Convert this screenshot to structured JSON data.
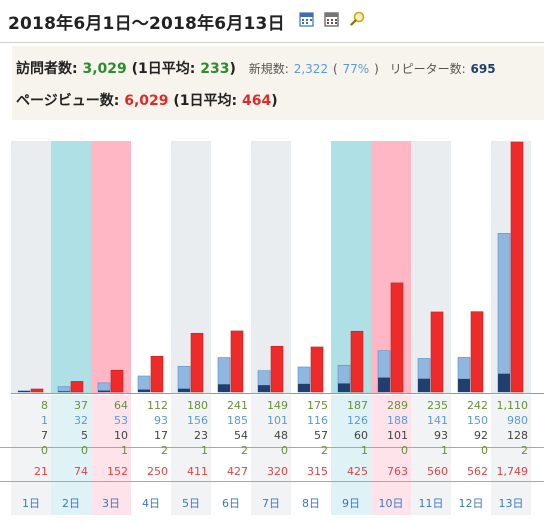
{
  "header": {
    "title": "2018年6月1日～2018年6月13日",
    "icons": [
      "calendar-icon",
      "calendar-grid-icon",
      "search-magnifier-icon"
    ]
  },
  "summary": {
    "visitors_label": "訪問者数:",
    "visitors_value": "3,029",
    "visitors_avg_open": "(1日平均:",
    "visitors_avg_value": "233",
    "visitors_avg_close": ")",
    "new_label": "新規数:",
    "new_value": "2,322",
    "new_pct_open": "(",
    "new_pct": "77%",
    "new_pct_close": ")",
    "repeat_label": "リピーター数:",
    "repeat_value": "695",
    "pv_label": "ページビュー数:",
    "pv_value": "6,029",
    "pv_avg_open": "(1日平均:",
    "pv_avg_value": "464",
    "pv_avg_close": ")"
  },
  "colors": {
    "visitors": "#6a8f3a",
    "new": "#8fb7e0",
    "repeat": "#1f3f6f",
    "pageviews": "#ee2b2b",
    "weekend_blue": "#aee0e6",
    "weekend_pink": "#ffb6c5",
    "gray_band": "#e9edf0"
  },
  "chart_data": {
    "type": "bar",
    "categories": [
      "1日",
      "2日",
      "3日",
      "4日",
      "5日",
      "6日",
      "7日",
      "8日",
      "9日",
      "10日",
      "11日",
      "12日",
      "13日"
    ],
    "series": [
      {
        "values": [
          8,
          37,
          64,
          112,
          180,
          241,
          149,
          175,
          187,
          289,
          235,
          242,
          1110
        ]
      },
      {
        "values": [
          1,
          32,
          53,
          93,
          156,
          185,
          101,
          116,
          126,
          188,
          141,
          150,
          980
        ]
      },
      {
        "values": [
          7,
          5,
          10,
          17,
          23,
          54,
          48,
          57,
          60,
          101,
          93,
          92,
          128
        ]
      },
      {
        "values": [
          0,
          0,
          1,
          2,
          1,
          2,
          0,
          2,
          1,
          0,
          1,
          0,
          2
        ]
      },
      {
        "values": [
          21,
          74,
          152,
          250,
          411,
          427,
          320,
          315,
          425,
          763,
          560,
          562,
          1749
        ]
      }
    ],
    "ylim": [
      0,
      1749
    ]
  },
  "table": {
    "visits": [
      "8",
      "37",
      "64",
      "112",
      "180",
      "241",
      "149",
      "175",
      "187",
      "289",
      "235",
      "242",
      "1,110"
    ],
    "new": [
      "1",
      "32",
      "53",
      "93",
      "156",
      "185",
      "101",
      "116",
      "126",
      "188",
      "141",
      "150",
      "980"
    ],
    "repeat": [
      "7",
      "5",
      "10",
      "17",
      "23",
      "54",
      "48",
      "57",
      "60",
      "101",
      "93",
      "92",
      "128"
    ],
    "zero": [
      "0",
      "0",
      "1",
      "2",
      "1",
      "2",
      "0",
      "2",
      "1",
      "0",
      "1",
      "0",
      "2"
    ],
    "pageviews": [
      "21",
      "74",
      "152",
      "250",
      "411",
      "427",
      "320",
      "315",
      "425",
      "763",
      "560",
      "562",
      "1,749"
    ],
    "days": [
      "1日",
      "2日",
      "3日",
      "4日",
      "5日",
      "6日",
      "7日",
      "8日",
      "9日",
      "10日",
      "11日",
      "12日",
      "13日"
    ],
    "day_kind": [
      "g",
      "b",
      "p",
      "g",
      "g",
      "g",
      "g",
      "g",
      "b",
      "p",
      "g",
      "g",
      "g"
    ]
  }
}
